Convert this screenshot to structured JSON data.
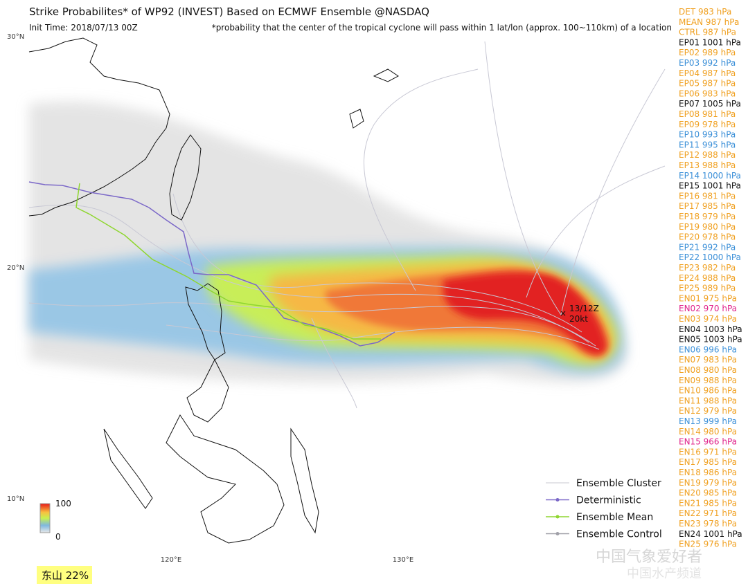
{
  "header": {
    "title": "Strike Probabilites* of WP92 (INVEST) Based on ECMWF Ensemble  @NASDAQ",
    "init_time": "Init Time: 2018/07/13 00Z",
    "note": "*probability that the center of the tropical cyclone will pass within 1 lat/lon (approx. 100~110km) of a location"
  },
  "axes": {
    "lat_labels": [
      "30°N",
      "20°N",
      "10°N"
    ],
    "lon_labels": [
      "120°E",
      "130°E"
    ]
  },
  "colorbar": {
    "max": "100",
    "min": "0"
  },
  "storm_label": [
    "13/12Z",
    "20kt"
  ],
  "legend": [
    {
      "label": "Ensemble Cluster",
      "color": "#c8c8d0"
    },
    {
      "label": "Deterministic",
      "color": "#7b68c8"
    },
    {
      "label": "Ensemble Mean",
      "color": "#8fd630"
    },
    {
      "label": "Ensemble Control",
      "color": "#a0a0a8"
    }
  ],
  "location_label": "东山 22%",
  "watermark": [
    "中国气象爱好者",
    "中国水产频道"
  ],
  "members": [
    {
      "label": "DET 983 hPa",
      "color": "#f0a020"
    },
    {
      "label": "MEAN 987 hPa",
      "color": "#f0a020"
    },
    {
      "label": "CTRL 987 hPa",
      "color": "#f0a020"
    },
    {
      "label": "EP01 1001 hPa",
      "color": "#111111"
    },
    {
      "label": "EP02 989 hPa",
      "color": "#f0a020"
    },
    {
      "label": "EP03 992 hPa",
      "color": "#3a8fd8"
    },
    {
      "label": "EP04 987 hPa",
      "color": "#f0a020"
    },
    {
      "label": "EP05 987 hPa",
      "color": "#f0a020"
    },
    {
      "label": "EP06 983 hPa",
      "color": "#f0a020"
    },
    {
      "label": "EP07 1005 hPa",
      "color": "#111111"
    },
    {
      "label": "EP08 981 hPa",
      "color": "#f0a020"
    },
    {
      "label": "EP09 978 hPa",
      "color": "#f0a020"
    },
    {
      "label": "EP10 993 hPa",
      "color": "#3a8fd8"
    },
    {
      "label": "EP11 995 hPa",
      "color": "#3a8fd8"
    },
    {
      "label": "EP12 988 hPa",
      "color": "#f0a020"
    },
    {
      "label": "EP13 988 hPa",
      "color": "#f0a020"
    },
    {
      "label": "EP14 1000 hPa",
      "color": "#3a8fd8"
    },
    {
      "label": "EP15 1001 hPa",
      "color": "#111111"
    },
    {
      "label": "EP16 981 hPa",
      "color": "#f0a020"
    },
    {
      "label": "EP17 985 hPa",
      "color": "#f0a020"
    },
    {
      "label": "EP18 979 hPa",
      "color": "#f0a020"
    },
    {
      "label": "EP19 980 hPa",
      "color": "#f0a020"
    },
    {
      "label": "EP20 978 hPa",
      "color": "#f0a020"
    },
    {
      "label": "EP21 992 hPa",
      "color": "#3a8fd8"
    },
    {
      "label": "EP22 1000 hPa",
      "color": "#3a8fd8"
    },
    {
      "label": "EP23 982 hPa",
      "color": "#f0a020"
    },
    {
      "label": "EP24 988 hPa",
      "color": "#f0a020"
    },
    {
      "label": "EP25 989 hPa",
      "color": "#f0a020"
    },
    {
      "label": "EN01 975 hPa",
      "color": "#f0a020"
    },
    {
      "label": "EN02 970 hPa",
      "color": "#e0208a"
    },
    {
      "label": "EN03 974 hPa",
      "color": "#f0a020"
    },
    {
      "label": "EN04 1003 hPa",
      "color": "#111111"
    },
    {
      "label": "EN05 1003 hPa",
      "color": "#111111"
    },
    {
      "label": "EN06 996 hPa",
      "color": "#3a8fd8"
    },
    {
      "label": "EN07 983 hPa",
      "color": "#f0a020"
    },
    {
      "label": "EN08 980 hPa",
      "color": "#f0a020"
    },
    {
      "label": "EN09 988 hPa",
      "color": "#f0a020"
    },
    {
      "label": "EN10 986 hPa",
      "color": "#f0a020"
    },
    {
      "label": "EN11 988 hPa",
      "color": "#f0a020"
    },
    {
      "label": "EN12 979 hPa",
      "color": "#f0a020"
    },
    {
      "label": "EN13 999 hPa",
      "color": "#3a8fd8"
    },
    {
      "label": "EN14 980 hPa",
      "color": "#f0a020"
    },
    {
      "label": "EN15 966 hPa",
      "color": "#e0208a"
    },
    {
      "label": "EN16 971 hPa",
      "color": "#f0a020"
    },
    {
      "label": "EN17 985 hPa",
      "color": "#f0a020"
    },
    {
      "label": "EN18 986 hPa",
      "color": "#f0a020"
    },
    {
      "label": "EN19 979 hPa",
      "color": "#f0a020"
    },
    {
      "label": "EN20 985 hPa",
      "color": "#f0a020"
    },
    {
      "label": "EN21 985 hPa",
      "color": "#f0a020"
    },
    {
      "label": "EN22 971 hPa",
      "color": "#f0a020"
    },
    {
      "label": "EN23 978 hPa",
      "color": "#f0a020"
    },
    {
      "label": "EN24 1001 hPa",
      "color": "#111111"
    },
    {
      "label": "EN25 976 hPa",
      "color": "#f0a020"
    }
  ]
}
